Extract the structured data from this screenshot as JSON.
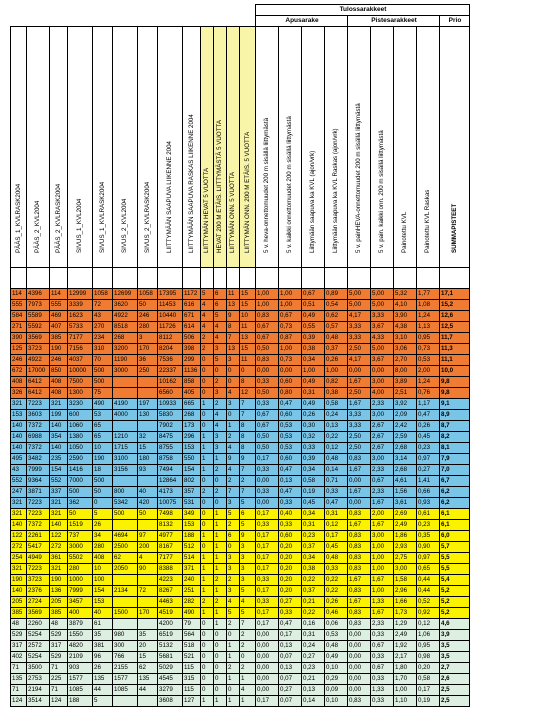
{
  "group_header": "Tulossarakkeet",
  "sub_headers": [
    "Apusarake",
    "Pistesarakkeet",
    "Prio"
  ],
  "columns": [
    "PÄÄS_1_KVLRASK2004",
    "PÄÄS_2_KVL2004",
    "PÄÄS_2_KVLRASK2004",
    "SIVUS_1_KVL2004",
    "SIVUS_1_KVLRASK2004",
    "SIVUS_2_KVL2004",
    "SIVUS_2_KVLRASK2004",
    "LIITTYMÄÄN SAAPUVA LIIKENNE 2004",
    "LIITTYMÄÄN SAAPUVA RASKAS LIIKENNE 2004",
    "LIITTYMÄN HEVAT 5 VUOTTA",
    "HEVAT 200 M ETÄIS. LIITTYMÄSTÄ 5 VUOTTA",
    "LIITTYMÄN ONN. 5 VUOTTA",
    "LIITTYMÄN ONN. 200 M ETÄIS. 5 VUOTTA",
    "5 v. heva-onnettomuudet 200 m sisällä liittymästä",
    "5 v. kaikki onnettomuudet 200 m sisällä liittymästä",
    "Liittymään saapuva ka KVL (ajon/vrk)",
    "Liittymään saapuva ka KVL Raskas (ajon/vrk)",
    "5 v. painHEVA-onnettomuudet 200 m sisällä liittymästä",
    "5 v. pain. kaikki onn. 200 m sisällä liittymästä",
    "Painotettu KVL",
    "Painotettu KVL Raskas",
    "SUMMAPISTEET"
  ],
  "colors": {
    "orange": "#f07c34",
    "blue": "#79c5e8",
    "yellow": "#fbf200",
    "mint": "#dcefe0",
    "highlight": "#f8f4a8"
  },
  "rows": [
    {
      "g": "orange",
      "v": [
        "114",
        "4396",
        "114",
        "12999",
        "1058",
        "12699",
        "1058",
        "17395",
        "1172",
        "5",
        "6",
        "11",
        "15",
        "1,00",
        "1,00",
        "0,67",
        "0,89",
        "5,00",
        "5,00",
        "5,32",
        "1,77",
        "17,1"
      ]
    },
    {
      "g": "orange",
      "v": [
        "555",
        "7973",
        "555",
        "3339",
        "72",
        "3620",
        "50",
        "11453",
        "616",
        "4",
        "6",
        "13",
        "15",
        "1,00",
        "1,00",
        "0,51",
        "0,54",
        "5,00",
        "5,00",
        "4,10",
        "1,08",
        "15,2"
      ]
    },
    {
      "g": "orange",
      "v": [
        "584",
        "5589",
        "469",
        "1623",
        "43",
        "4922",
        "246",
        "10440",
        "671",
        "4",
        "5",
        "9",
        "10",
        "0,83",
        "0,67",
        "0,49",
        "0,62",
        "4,17",
        "3,33",
        "3,90",
        "1,24",
        "12,6"
      ]
    },
    {
      "g": "orange",
      "v": [
        "271",
        "5592",
        "407",
        "5733",
        "270",
        "8518",
        "280",
        "11726",
        "614",
        "4",
        "4",
        "8",
        "11",
        "0,67",
        "0,73",
        "0,55",
        "0,57",
        "3,33",
        "3,67",
        "4,38",
        "1,13",
        "12,5"
      ]
    },
    {
      "g": "orange",
      "v": [
        "390",
        "3569",
        "385",
        "7177",
        "234",
        "268",
        "3",
        "8112",
        "506",
        "2",
        "4",
        "7",
        "13",
        "0,67",
        "0,87",
        "0,39",
        "0,48",
        "3,33",
        "4,33",
        "3,10",
        "0,95",
        "11,7"
      ]
    },
    {
      "g": "orange",
      "v": [
        "125",
        "3723",
        "190",
        "7156",
        "310",
        "3200",
        "170",
        "8204",
        "398",
        "2",
        "3",
        "13",
        "15",
        "0,50",
        "1,00",
        "0,38",
        "0,37",
        "2,50",
        "5,00",
        "3,06",
        "0,73",
        "11,3"
      ]
    },
    {
      "g": "orange",
      "v": [
        "246",
        "4922",
        "246",
        "4037",
        "70",
        "1190",
        "36",
        "7536",
        "299",
        "0",
        "5",
        "3",
        "11",
        "0,83",
        "0,73",
        "0,34",
        "0,26",
        "4,17",
        "3,67",
        "2,70",
        "0,53",
        "11,1"
      ]
    },
    {
      "g": "orange",
      "v": [
        "672",
        "17000",
        "850",
        "10000",
        "500",
        "3000",
        "250",
        "22337",
        "1136",
        "0",
        "0",
        "0",
        "0",
        "0,00",
        "0,00",
        "1,00",
        "1,00",
        "0,00",
        "0,00",
        "8,00",
        "2,00",
        "10,0"
      ]
    },
    {
      "g": "orange",
      "v": [
        "408",
        "6412",
        "408",
        "7500",
        "500",
        "",
        "",
        "10162",
        "858",
        "0",
        "2",
        "0",
        "8",
        "0,33",
        "0,60",
        "0,49",
        "0,82",
        "1,67",
        "3,00",
        "3,89",
        "1,24",
        "9,8"
      ]
    },
    {
      "g": "orange",
      "v": [
        "326",
        "6412",
        "408",
        "1300",
        "75",
        "",
        "",
        "6560",
        "405",
        "0",
        "3",
        "4",
        "12",
        "0,50",
        "0,80",
        "0,31",
        "0,38",
        "2,50",
        "4,00",
        "2,51",
        "0,76",
        "9,8"
      ]
    },
    {
      "g": "blue",
      "v": [
        "321",
        "7223",
        "321",
        "3230",
        "490",
        "4190",
        "197",
        "10933",
        "665",
        "1",
        "2",
        "3",
        "7",
        "0,33",
        "0,47",
        "0,49",
        "0,58",
        "1,67",
        "2,33",
        "3,92",
        "1,17",
        "9,1"
      ]
    },
    {
      "g": "blue",
      "v": [
        "153",
        "3603",
        "199",
        "600",
        "53",
        "4000",
        "130",
        "5830",
        "268",
        "0",
        "4",
        "0",
        "7",
        "0,67",
        "0,60",
        "0,26",
        "0,24",
        "3,33",
        "3,00",
        "2,09",
        "0,47",
        "8,9"
      ]
    },
    {
      "g": "blue",
      "v": [
        "140",
        "7372",
        "140",
        "1060",
        "65",
        "",
        "",
        "7902",
        "173",
        "0",
        "4",
        "1",
        "8",
        "0,67",
        "0,53",
        "0,30",
        "0,13",
        "3,33",
        "2,67",
        "2,42",
        "0,26",
        "8,7"
      ]
    },
    {
      "g": "blue",
      "v": [
        "140",
        "6988",
        "354",
        "1380",
        "65",
        "1210",
        "32",
        "8475",
        "296",
        "1",
        "3",
        "2",
        "8",
        "0,50",
        "0,53",
        "0,32",
        "0,22",
        "2,50",
        "2,67",
        "2,59",
        "0,45",
        "8,2"
      ]
    },
    {
      "g": "blue",
      "v": [
        "140",
        "7372",
        "140",
        "1050",
        "10",
        "1715",
        "15",
        "8755",
        "153",
        "1",
        "3",
        "4",
        "8",
        "0,50",
        "0,53",
        "0,33",
        "0,12",
        "2,50",
        "2,67",
        "2,68",
        "0,23",
        "8,1"
      ]
    },
    {
      "g": "blue",
      "v": [
        "495",
        "3482",
        "235",
        "2590",
        "190",
        "3100",
        "180",
        "8758",
        "550",
        "1",
        "1",
        "9",
        "9",
        "0,17",
        "0,60",
        "0,39",
        "0,48",
        "0,83",
        "3,00",
        "3,14",
        "0,97",
        "7,9"
      ]
    },
    {
      "g": "blue",
      "v": [
        "43",
        "7999",
        "154",
        "1416",
        "18",
        "3156",
        "93",
        "7494",
        "154",
        "1",
        "2",
        "4",
        "7",
        "0,33",
        "0,47",
        "0,34",
        "0,14",
        "1,67",
        "2,33",
        "2,68",
        "0,27",
        "7,0"
      ]
    },
    {
      "g": "blue",
      "v": [
        "552",
        "9364",
        "552",
        "7000",
        "500",
        "",
        "",
        "12864",
        "802",
        "0",
        "0",
        "2",
        "2",
        "0,00",
        "0,13",
        "0,58",
        "0,71",
        "0,00",
        "0,67",
        "4,61",
        "1,41",
        "6,7"
      ]
    },
    {
      "g": "blue",
      "v": [
        "247",
        "3871",
        "337",
        "500",
        "50",
        "800",
        "40",
        "4173",
        "357",
        "2",
        "2",
        "7",
        "7",
        "0,33",
        "0,47",
        "0,19",
        "0,33",
        "1,67",
        "2,33",
        "1,56",
        "0,66",
        "6,2"
      ]
    },
    {
      "g": "blue",
      "v": [
        "321",
        "7223",
        "321",
        "362",
        "0",
        "5342",
        "420",
        "10075",
        "531",
        "0",
        "0",
        "3",
        "5",
        "0,00",
        "0,33",
        "0,45",
        "0,47",
        "0,00",
        "1,67",
        "3,61",
        "0,93",
        "6,2"
      ]
    },
    {
      "g": "yellow",
      "v": [
        "321",
        "7223",
        "321",
        "50",
        "5",
        "500",
        "50",
        "7498",
        "349",
        "0",
        "1",
        "5",
        "6",
        "0,17",
        "0,40",
        "0,34",
        "0,31",
        "0,83",
        "2,00",
        "2,69",
        "0,61",
        "6,1"
      ]
    },
    {
      "g": "yellow",
      "v": [
        "140",
        "7372",
        "140",
        "1519",
        "26",
        "",
        "",
        "8132",
        "153",
        "0",
        "1",
        "2",
        "5",
        "0,33",
        "0,33",
        "0,31",
        "0,12",
        "1,67",
        "1,67",
        "2,49",
        "0,23",
        "6,1"
      ]
    },
    {
      "g": "yellow",
      "v": [
        "122",
        "2261",
        "122",
        "737",
        "34",
        "4694",
        "97",
        "4977",
        "188",
        "1",
        "1",
        "6",
        "9",
        "0,17",
        "0,60",
        "0,23",
        "0,17",
        "0,83",
        "3,00",
        "1,86",
        "0,35",
        "6,0"
      ]
    },
    {
      "g": "yellow",
      "v": [
        "272",
        "5417",
        "272",
        "3000",
        "280",
        "2500",
        "200",
        "8167",
        "512",
        "0",
        "1",
        "0",
        "3",
        "0,17",
        "0,20",
        "0,37",
        "0,45",
        "0,83",
        "1,00",
        "2,93",
        "0,90",
        "5,7"
      ]
    },
    {
      "g": "yellow",
      "v": [
        "254",
        "4949",
        "361",
        "5502",
        "408",
        "62",
        "4",
        "7177",
        "514",
        "1",
        "1",
        "3",
        "3",
        "0,17",
        "0,20",
        "0,34",
        "0,48",
        "0,83",
        "1,00",
        "2,75",
        "0,97",
        "5,5"
      ]
    },
    {
      "g": "yellow",
      "v": [
        "321",
        "7223",
        "321",
        "280",
        "10",
        "2050",
        "90",
        "8388",
        "371",
        "1",
        "1",
        "3",
        "3",
        "0,17",
        "0,20",
        "0,38",
        "0,33",
        "0,83",
        "1,00",
        "3,00",
        "0,65",
        "5,5"
      ]
    },
    {
      "g": "yellow",
      "v": [
        "190",
        "3723",
        "190",
        "1000",
        "100",
        "",
        "",
        "4223",
        "240",
        "1",
        "2",
        "2",
        "3",
        "0,33",
        "0,20",
        "0,22",
        "0,22",
        "1,67",
        "1,67",
        "1,58",
        "0,44",
        "5,4"
      ]
    },
    {
      "g": "yellow",
      "v": [
        "140",
        "2376",
        "136",
        "7999",
        "154",
        "2134",
        "72",
        "8267",
        "251",
        "1",
        "1",
        "3",
        "5",
        "0,17",
        "0,20",
        "0,37",
        "0,22",
        "0,83",
        "1,00",
        "2,96",
        "0,44",
        "5,2"
      ]
    },
    {
      "g": "yellow",
      "v": [
        "205",
        "2724",
        "205",
        "3457",
        "153",
        "",
        "",
        "4463",
        "282",
        "2",
        "2",
        "4",
        "4",
        "0,33",
        "0,27",
        "0,21",
        "0,26",
        "1,67",
        "1,33",
        "1,66",
        "0,52",
        "5,2"
      ]
    },
    {
      "g": "yellow",
      "v": [
        "385",
        "3569",
        "385",
        "400",
        "40",
        "1500",
        "170",
        "4519",
        "490",
        "1",
        "1",
        "5",
        "5",
        "0,17",
        "0,33",
        "0,22",
        "0,46",
        "0,83",
        "1,67",
        "1,73",
        "0,92",
        "5,2"
      ]
    },
    {
      "g": "mint",
      "v": [
        "48",
        "2260",
        "48",
        "3879",
        "61",
        "",
        "",
        "4200",
        "79",
        "0",
        "1",
        "2",
        "7",
        "0,17",
        "0,47",
        "0,16",
        "0,06",
        "0,83",
        "2,33",
        "1,29",
        "0,12",
        "4,6"
      ]
    },
    {
      "g": "mint",
      "v": [
        "529",
        "5254",
        "529",
        "1550",
        "35",
        "980",
        "35",
        "6519",
        "564",
        "0",
        "0",
        "0",
        "2",
        "0,00",
        "0,17",
        "0,31",
        "0,53",
        "0,00",
        "0,33",
        "2,49",
        "1,06",
        "3,9"
      ]
    },
    {
      "g": "mint",
      "v": [
        "317",
        "2572",
        "317",
        "4820",
        "381",
        "300",
        "20",
        "5132",
        "518",
        "0",
        "0",
        "1",
        "2",
        "0,00",
        "0,13",
        "0,24",
        "0,48",
        "0,00",
        "0,67",
        "1,92",
        "0,95",
        "3,5"
      ]
    },
    {
      "g": "mint",
      "v": [
        "402",
        "5254",
        "529",
        "2109",
        "96",
        "766",
        "15",
        "5681",
        "521",
        "0",
        "0",
        "1",
        "0",
        "0,00",
        "0,07",
        "0,27",
        "0,49",
        "0,00",
        "0,33",
        "2,17",
        "0,98",
        "3,5"
      ]
    },
    {
      "g": "mint",
      "v": [
        "71",
        "3500",
        "71",
        "903",
        "26",
        "2155",
        "62",
        "5029",
        "115",
        "0",
        "0",
        "2",
        "2",
        "0,00",
        "0,13",
        "0,23",
        "0,10",
        "0,00",
        "0,67",
        "1,80",
        "0,20",
        "2,7"
      ]
    },
    {
      "g": "mint",
      "v": [
        "135",
        "2753",
        "225",
        "1577",
        "135",
        "1577",
        "135",
        "4545",
        "315",
        "0",
        "0",
        "1",
        "1",
        "0,00",
        "0,07",
        "0,21",
        "0,29",
        "0,00",
        "0,33",
        "1,70",
        "0,58",
        "2,6"
      ]
    },
    {
      "g": "mint",
      "v": [
        "71",
        "2194",
        "71",
        "1085",
        "44",
        "1085",
        "44",
        "3279",
        "115",
        "0",
        "0",
        "0",
        "4",
        "0,00",
        "0,27",
        "0,13",
        "0,09",
        "0,00",
        "1,33",
        "1,00",
        "0,17",
        "2,5"
      ]
    },
    {
      "g": "mint",
      "v": [
        "124",
        "3514",
        "124",
        "188",
        "5",
        "",
        "",
        "3608",
        "127",
        "1",
        "1",
        "1",
        "1",
        "0,17",
        "0,07",
        "0,14",
        "0,10",
        "0,83",
        "0,33",
        "1,10",
        "0,19",
        "2,5"
      ]
    }
  ]
}
